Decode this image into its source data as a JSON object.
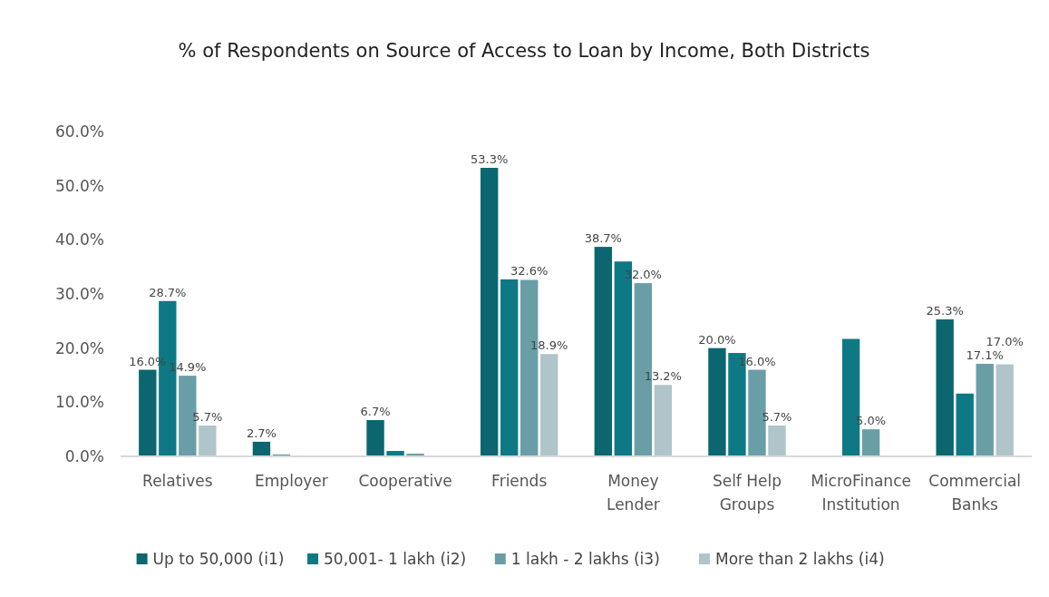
{
  "chart_data": {
    "type": "bar",
    "title": "% of Respondents on Source of Access to Loan by Income, Both Districts",
    "categories": [
      "Relatives",
      "Employer",
      "Cooperative",
      "Friends",
      "Money Lender",
      "Self Help Groups",
      "MicroFinance Institution",
      "Commercial Banks"
    ],
    "series": [
      {
        "name": "Up to 50,000 (i1)",
        "color": "#0b6670",
        "values": [
          16.0,
          2.7,
          6.7,
          53.3,
          38.7,
          20.0,
          0,
          25.3
        ],
        "value_labels": [
          "16.0%",
          "2.7%",
          "6.7%",
          "53.3%",
          "38.7%",
          "20.0%",
          null,
          "25.3%"
        ]
      },
      {
        "name": "50,001- 1 lakh (i2)",
        "color": "#0e7985",
        "values": [
          28.7,
          0.3,
          1.0,
          32.7,
          36.0,
          19.1,
          21.7,
          11.6
        ],
        "value_labels": [
          "28.7%",
          null,
          null,
          null,
          null,
          null,
          null,
          null
        ]
      },
      {
        "name": "1 lakh - 2 lakhs (i3)",
        "color": "#6a9ea7",
        "values": [
          14.9,
          0,
          0.5,
          32.6,
          32.0,
          16.0,
          5.0,
          17.1
        ],
        "value_labels": [
          "14.9%",
          null,
          null,
          "32.6%",
          "32.0%",
          "16.0%",
          "5.0%",
          "17.1%"
        ]
      },
      {
        "name": "More than 2 lakhs (i4)",
        "color": "#b0c5ca",
        "values": [
          5.7,
          0,
          0,
          18.9,
          13.2,
          5.7,
          0,
          17.0
        ],
        "value_labels": [
          "5.7%",
          null,
          null,
          "18.9%",
          "13.2%",
          "5.7%",
          null,
          "17.0%"
        ]
      }
    ],
    "ylim": [
      0,
      60
    ],
    "yticks": [
      {
        "value": 0,
        "label": "0.0%"
      },
      {
        "value": 10,
        "label": "10.0%"
      },
      {
        "value": 20,
        "label": "20.0%"
      },
      {
        "value": 30,
        "label": "30.0%"
      },
      {
        "value": 40,
        "label": "40.0%"
      },
      {
        "value": 50,
        "label": "50.0%"
      },
      {
        "value": 60,
        "label": "60.0%"
      }
    ],
    "grid": false,
    "legend": "bottom"
  }
}
